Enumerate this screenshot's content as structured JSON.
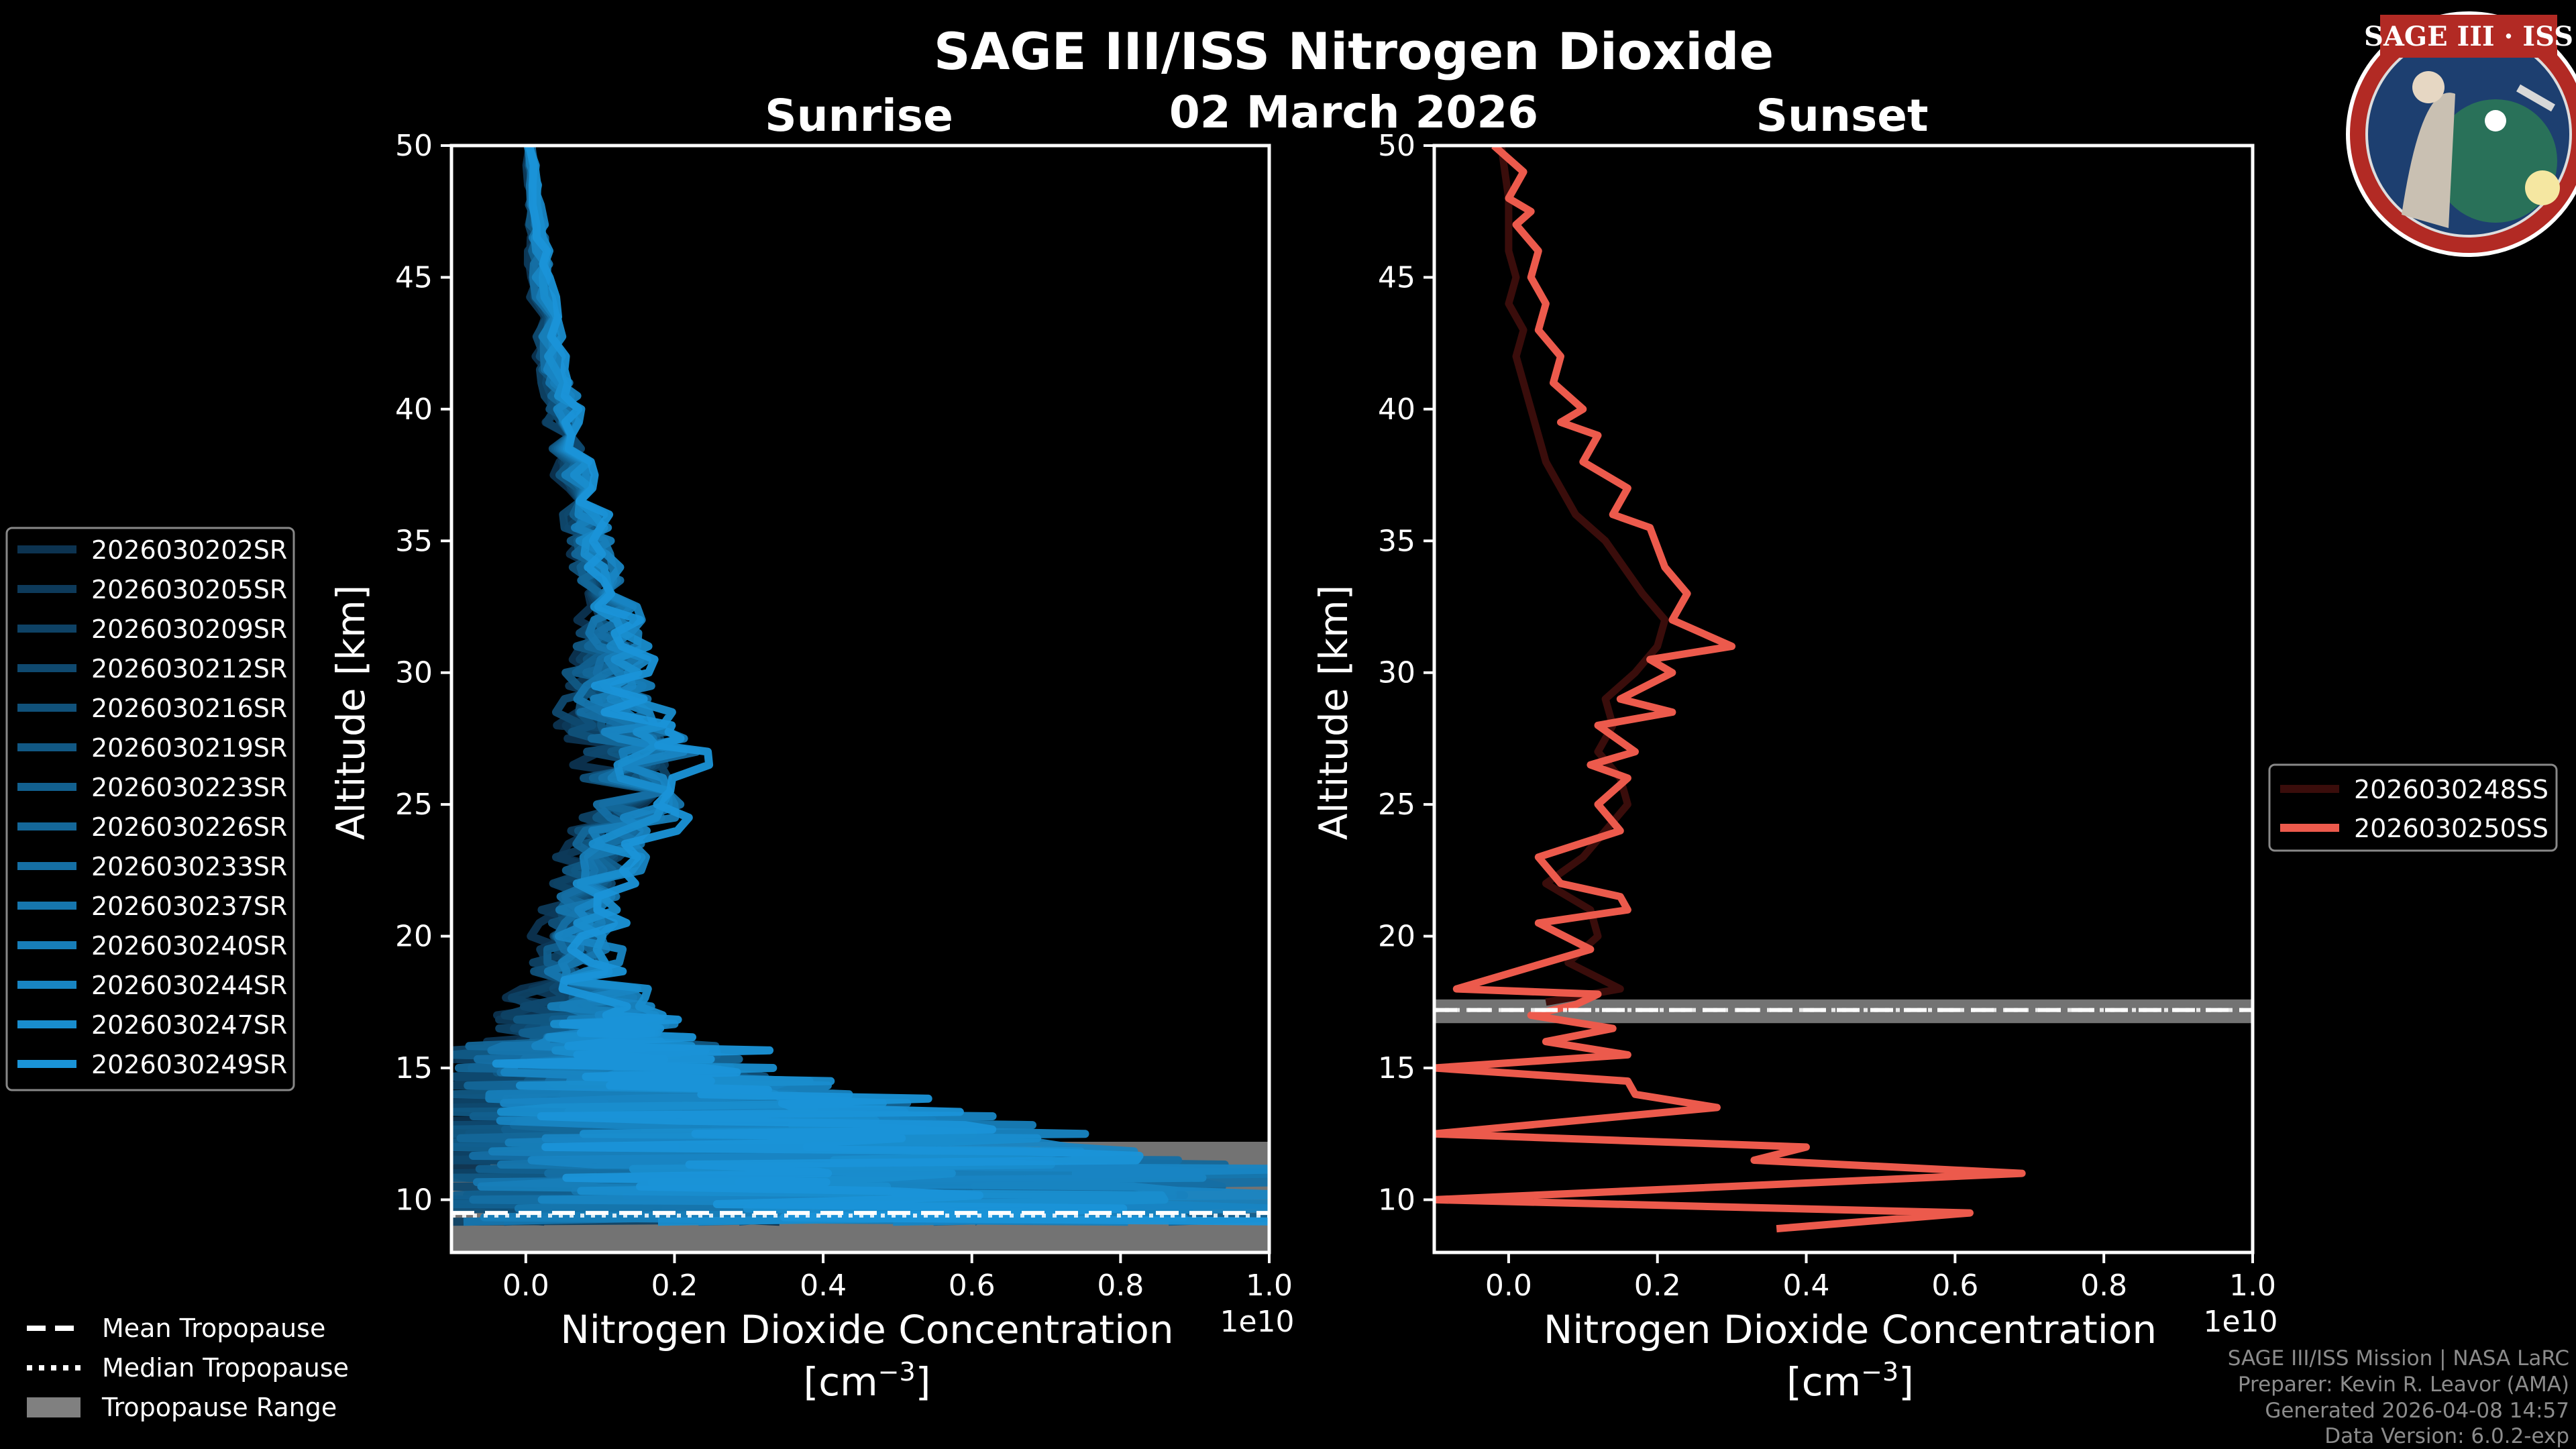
{
  "title": "SAGE III/ISS Nitrogen Dioxide",
  "date": "02 March 2026",
  "logo": {
    "text": "SAGE III · ISS",
    "colors": {
      "ring": "#b22a24",
      "field": "#1d3f70",
      "inner": "#ffffff"
    }
  },
  "footer": {
    "lines": [
      "SAGE III/ISS Mission | NASA LaRC",
      "Preparer: Kevin R. Leavor (AMA)",
      "Generated 2026-04-08 14:57",
      "Data Version: 6.0.2-exp"
    ]
  },
  "tropopause_legend": {
    "mean": "Mean Tropopause",
    "median": "Median Tropopause",
    "range": "Tropopause Range"
  },
  "chart_data": [
    {
      "type": "line",
      "title": "Sunrise",
      "xlabel": "Nitrogen Dioxide Concentration",
      "xlabel_unit": "[cm",
      "xlabel_exp": "−3",
      "xlabel_unit_end": "]",
      "ylabel": "Altitude [km]",
      "x_multiplier": "1e10",
      "xlim": [
        -0.1,
        1.0
      ],
      "ylim": [
        8,
        50
      ],
      "xticks": [
        "0.0",
        "0.2",
        "0.4",
        "0.6",
        "0.8",
        "1.0"
      ],
      "xtick_values": [
        0.0,
        0.2,
        0.4,
        0.6,
        0.8,
        1.0
      ],
      "yticks": [
        "10",
        "15",
        "20",
        "25",
        "30",
        "35",
        "40",
        "45",
        "50"
      ],
      "ytick_values": [
        10,
        15,
        20,
        25,
        30,
        35,
        40,
        45,
        50
      ],
      "legend_position": "left",
      "series_color_start": "#0c3350",
      "series_color_end": "#1a94d8",
      "tropopause": {
        "mean": 9.5,
        "median": 9.4,
        "range": [
          8.0,
          12.2
        ]
      },
      "series": [
        {
          "name": "2026030202SR"
        },
        {
          "name": "2026030205SR"
        },
        {
          "name": "2026030209SR"
        },
        {
          "name": "2026030212SR"
        },
        {
          "name": "2026030216SR"
        },
        {
          "name": "2026030219SR"
        },
        {
          "name": "2026030223SR"
        },
        {
          "name": "2026030226SR"
        },
        {
          "name": "2026030233SR"
        },
        {
          "name": "2026030237SR"
        },
        {
          "name": "2026030240SR"
        },
        {
          "name": "2026030244SR"
        },
        {
          "name": "2026030247SR"
        },
        {
          "name": "2026030249SR"
        }
      ],
      "profile_envelope": {
        "altitude": [
          50,
          47,
          45,
          42,
          40,
          38,
          36,
          34,
          32,
          30,
          28,
          27,
          25,
          23,
          21,
          19,
          17,
          16,
          15,
          14,
          13,
          12,
          11,
          10,
          9
        ],
        "min": [
          0.0,
          0.0,
          0.0,
          0.01,
          0.02,
          0.03,
          0.04,
          0.05,
          0.06,
          0.02,
          0.02,
          0.05,
          0.05,
          0.03,
          0.01,
          -0.01,
          -0.05,
          -0.08,
          -0.1,
          -0.1,
          -0.1,
          -0.1,
          -0.1,
          -0.1,
          -0.1
        ],
        "max": [
          0.01,
          0.03,
          0.04,
          0.06,
          0.08,
          0.1,
          0.12,
          0.14,
          0.17,
          0.2,
          0.23,
          0.27,
          0.25,
          0.18,
          0.14,
          0.15,
          0.22,
          0.25,
          0.3,
          0.43,
          0.6,
          0.7,
          1.0,
          1.0,
          1.0
        ]
      }
    },
    {
      "type": "line",
      "title": "Sunset",
      "xlabel": "Nitrogen Dioxide Concentration",
      "xlabel_unit": "[cm",
      "xlabel_exp": "−3",
      "xlabel_unit_end": "]",
      "ylabel": "Altitude [km]",
      "x_multiplier": "1e10",
      "xlim": [
        -0.1,
        1.0
      ],
      "ylim": [
        8,
        50
      ],
      "xticks": [
        "0.0",
        "0.2",
        "0.4",
        "0.6",
        "0.8",
        "1.0"
      ],
      "xtick_values": [
        0.0,
        0.2,
        0.4,
        0.6,
        0.8,
        1.0
      ],
      "yticks": [
        "10",
        "15",
        "20",
        "25",
        "30",
        "35",
        "40",
        "45",
        "50"
      ],
      "ytick_values": [
        10,
        15,
        20,
        25,
        30,
        35,
        40,
        45,
        50
      ],
      "legend_position": "right",
      "tropopause": {
        "mean": 17.2,
        "median": 17.2,
        "range": [
          16.7,
          17.6
        ]
      },
      "series": [
        {
          "name": "2026030248SS",
          "color": "#3a0d0b",
          "x": [
            -0.01,
            0.0,
            0.0,
            0.01,
            0.0,
            0.02,
            0.01,
            0.02,
            0.03,
            0.04,
            0.05,
            0.07,
            0.09,
            0.13,
            0.18,
            0.21,
            0.2,
            0.17,
            0.13,
            0.14,
            0.12,
            0.15,
            0.16,
            0.13,
            0.1,
            0.05,
            0.11,
            0.12,
            0.08,
            0.15,
            0.05
          ],
          "y": [
            50,
            48,
            46,
            45,
            44,
            43,
            42,
            41,
            40,
            39,
            38,
            37,
            36,
            35,
            33,
            32,
            31,
            30,
            29,
            28,
            27,
            26,
            25,
            24,
            23,
            22,
            21,
            20,
            19,
            18,
            17.5
          ]
        },
        {
          "name": "2026030250SS",
          "color": "#ec5a4c",
          "x": [
            -0.02,
            0.0,
            0.02,
            0.0,
            0.03,
            0.01,
            0.04,
            0.03,
            0.05,
            0.04,
            0.07,
            0.06,
            0.1,
            0.07,
            0.12,
            0.1,
            0.16,
            0.14,
            0.19,
            0.21,
            0.24,
            0.22,
            0.3,
            0.19,
            0.22,
            0.15,
            0.22,
            0.12,
            0.17,
            0.11,
            0.16,
            0.12,
            0.15,
            0.04,
            0.07,
            0.15,
            0.16,
            0.04,
            0.11,
            -0.07,
            0.12,
            0.09,
            0.03,
            0.14,
            0.05,
            0.16,
            -0.1,
            0.16,
            0.17,
            0.28,
            -0.1,
            0.4,
            0.33,
            0.69,
            -0.1,
            0.62,
            0.36
          ],
          "y": [
            50,
            49.5,
            49,
            48,
            47.5,
            47,
            46,
            45,
            44,
            43,
            42,
            41,
            40,
            39.5,
            39,
            38,
            37,
            36,
            35.5,
            34,
            33,
            32,
            31,
            30.5,
            30,
            29,
            28.5,
            28,
            27,
            26.5,
            26,
            25,
            24,
            23,
            22,
            21.5,
            21,
            20.5,
            19.5,
            18,
            17.8,
            17.4,
            17.0,
            16.5,
            16,
            15.5,
            15,
            14.5,
            14,
            13.5,
            12.5,
            12,
            11.5,
            11,
            10,
            9.5,
            8.9
          ]
        }
      ]
    }
  ]
}
